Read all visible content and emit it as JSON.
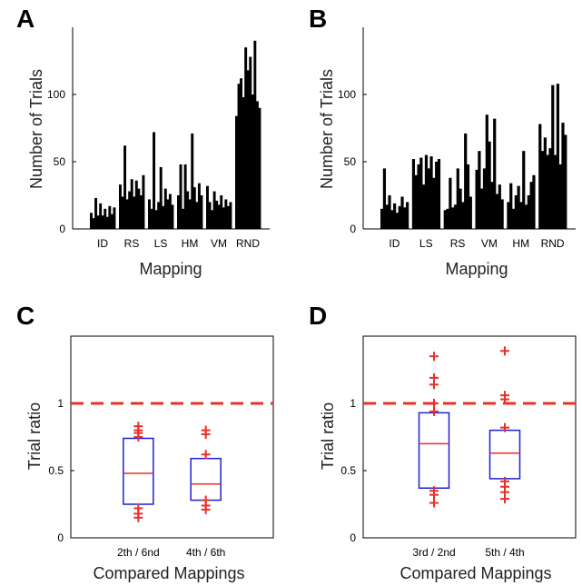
{
  "chart_data": [
    {
      "panel": "A",
      "type": "bar",
      "xlabel": "Mapping",
      "ylabel": "Number of Trials",
      "ylim": [
        0,
        150
      ],
      "yticks": [
        0,
        50,
        100
      ],
      "groups": [
        {
          "label": "ID",
          "values": [
            12,
            8,
            23,
            10,
            19,
            10,
            15,
            9,
            17,
            11,
            16
          ]
        },
        {
          "label": "RS",
          "values": [
            33,
            24,
            62,
            22,
            28,
            37,
            24,
            36,
            30,
            25,
            40
          ]
        },
        {
          "label": "LS",
          "values": [
            22,
            15,
            72,
            14,
            20,
            46,
            17,
            30,
            22,
            26,
            18
          ]
        },
        {
          "label": "HM",
          "values": [
            25,
            48,
            15,
            48,
            28,
            22,
            71,
            31,
            20,
            34,
            25
          ]
        },
        {
          "label": "VM",
          "values": [
            32,
            20,
            14,
            28,
            21,
            18,
            25,
            16,
            22,
            17,
            20
          ]
        },
        {
          "label": "RND",
          "values": [
            84,
            108,
            112,
            98,
            135,
            118,
            128,
            100,
            140,
            95,
            90
          ]
        }
      ]
    },
    {
      "panel": "B",
      "type": "bar",
      "xlabel": "Mapping",
      "ylabel": "Number of Trials",
      "ylim": [
        0,
        150
      ],
      "yticks": [
        0,
        50,
        100
      ],
      "groups": [
        {
          "label": "ID",
          "values": [
            15,
            45,
            18,
            25,
            14,
            19,
            12,
            17,
            24,
            16,
            20
          ]
        },
        {
          "label": "LS",
          "values": [
            52,
            40,
            48,
            53,
            33,
            55,
            45,
            54,
            38,
            50,
            52
          ]
        },
        {
          "label": "RS",
          "values": [
            14,
            15,
            38,
            16,
            18,
            45,
            30,
            20,
            71,
            48,
            24
          ]
        },
        {
          "label": "VM",
          "values": [
            44,
            58,
            30,
            45,
            85,
            65,
            35,
            82,
            26,
            33,
            22
          ]
        },
        {
          "label": "HM",
          "values": [
            20,
            34,
            15,
            25,
            32,
            20,
            58,
            18,
            25,
            35,
            40
          ]
        },
        {
          "label": "RND",
          "values": [
            78,
            58,
            68,
            55,
            60,
            107,
            55,
            108,
            48,
            79,
            70
          ]
        }
      ]
    },
    {
      "panel": "C",
      "type": "box",
      "xlabel": "Compared Mappings",
      "ylabel": "Trial ratio",
      "ylim": [
        0,
        1.5
      ],
      "yticks": [
        0,
        0.5,
        1
      ],
      "reference_line": 1,
      "boxes": [
        {
          "label": "2th / 6nd",
          "q1": 0.25,
          "median": 0.48,
          "q3": 0.74,
          "outliers": [
            0.15,
            0.18,
            0.22,
            0.75,
            0.78,
            0.8,
            0.83
          ]
        },
        {
          "label": "4th / 6th",
          "q1": 0.28,
          "median": 0.4,
          "q3": 0.59,
          "outliers": [
            0.21,
            0.24,
            0.28,
            0.62,
            0.77,
            0.8
          ]
        }
      ]
    },
    {
      "panel": "D",
      "type": "box",
      "xlabel": "Compared Mappings",
      "ylabel": "Trial ratio",
      "ylim": [
        0,
        1.5
      ],
      "yticks": [
        0,
        0.5,
        1
      ],
      "reference_line": 1,
      "boxes": [
        {
          "label": "3rd / 2nd",
          "q1": 0.37,
          "median": 0.7,
          "q3": 0.93,
          "outliers": [
            0.26,
            0.32,
            0.35,
            0.94,
            1.0,
            1.14,
            1.19,
            1.35
          ]
        },
        {
          "label": "5th / 4th",
          "q1": 0.44,
          "median": 0.63,
          "q3": 0.8,
          "outliers": [
            0.29,
            0.34,
            0.38,
            0.42,
            0.82,
            1.03,
            1.06,
            1.39
          ]
        }
      ]
    }
  ],
  "colors": {
    "bar": "#000000",
    "box": "#1f1fd6",
    "median": "#e8302a",
    "outlier": "#e8302a",
    "reference": "#e8302a"
  }
}
